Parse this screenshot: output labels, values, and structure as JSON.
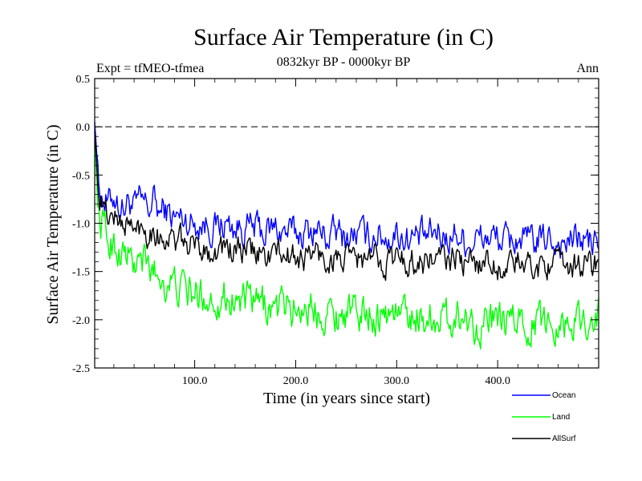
{
  "chart_data": {
    "type": "line",
    "title": "Surface Air Temperature (in C)",
    "subtitle": "0832kyr BP - 0000kyr BP",
    "expt_label": "Expt = tfMEO-tfmea",
    "period_label": "Ann",
    "xlabel": "Time (in years since start)",
    "ylabel": "Surface Air Temperature (in C)",
    "xlim": [
      1,
      500
    ],
    "ylim": [
      -2.5,
      0.5
    ],
    "x_ticks": [
      100,
      200,
      300,
      400
    ],
    "x_tick_labels": [
      "100.0",
      "200.0",
      "300.0",
      "400.0"
    ],
    "y_ticks": [
      0.5,
      0.0,
      -0.5,
      -1.0,
      -1.5,
      -2.0,
      -2.5
    ],
    "y_tick_labels": [
      "0.5",
      "0.0",
      "-0.5",
      "-1.0",
      "-1.5",
      "-2.0",
      "-2.5"
    ],
    "reference_line": 0.0,
    "series": [
      {
        "name": "Ocean",
        "color": "#0000ff",
        "x": [
          1,
          5,
          10,
          15,
          20,
          25,
          30,
          35,
          40,
          45,
          50,
          55,
          60,
          65,
          70,
          75,
          80,
          90,
          100,
          110,
          120,
          130,
          140,
          150,
          160,
          170,
          180,
          190,
          200,
          210,
          220,
          230,
          240,
          250,
          260,
          270,
          280,
          290,
          300,
          310,
          320,
          330,
          340,
          350,
          360,
          370,
          380,
          390,
          400,
          410,
          420,
          430,
          440,
          450,
          460,
          470,
          480,
          490,
          500
        ],
        "values": [
          0.05,
          -0.6,
          -0.75,
          -0.8,
          -0.7,
          -0.8,
          -0.85,
          -0.75,
          -0.85,
          -0.8,
          -0.8,
          -0.85,
          -0.75,
          -0.9,
          -0.85,
          -0.9,
          -0.95,
          -0.95,
          -1.0,
          -1.0,
          -1.05,
          -1.0,
          -1.05,
          -1.05,
          -1.05,
          -1.1,
          -1.05,
          -1.1,
          -1.1,
          -1.1,
          -1.05,
          -1.15,
          -1.1,
          -1.15,
          -1.1,
          -1.15,
          -1.1,
          -1.15,
          -1.1,
          -1.15,
          -1.15,
          -1.15,
          -1.1,
          -1.15,
          -1.1,
          -1.2,
          -1.15,
          -1.15,
          -1.15,
          -1.2,
          -1.15,
          -1.2,
          -1.2,
          -1.15,
          -1.2,
          -1.2,
          -1.15,
          -1.2,
          -1.2
        ]
      },
      {
        "name": "Land",
        "color": "#00ff00",
        "x": [
          1,
          5,
          10,
          15,
          20,
          25,
          30,
          35,
          40,
          45,
          50,
          55,
          60,
          65,
          70,
          75,
          80,
          90,
          100,
          110,
          120,
          130,
          140,
          150,
          160,
          170,
          180,
          190,
          200,
          210,
          220,
          230,
          240,
          250,
          260,
          270,
          280,
          290,
          300,
          310,
          320,
          330,
          340,
          350,
          360,
          370,
          380,
          390,
          400,
          410,
          420,
          430,
          440,
          450,
          460,
          470,
          480,
          490,
          500
        ],
        "values": [
          -0.2,
          -0.9,
          -1.05,
          -1.2,
          -1.2,
          -1.3,
          -1.3,
          -1.35,
          -1.45,
          -1.4,
          -1.4,
          -1.5,
          -1.5,
          -1.55,
          -1.6,
          -1.6,
          -1.65,
          -1.7,
          -1.75,
          -1.75,
          -1.8,
          -1.75,
          -1.8,
          -1.8,
          -1.85,
          -1.85,
          -1.9,
          -1.85,
          -1.9,
          -1.85,
          -1.9,
          -1.9,
          -1.95,
          -1.9,
          -1.95,
          -1.9,
          -1.95,
          -1.95,
          -1.9,
          -1.95,
          -1.95,
          -2.0,
          -1.95,
          -2.0,
          -1.95,
          -2.0,
          -2.05,
          -2.0,
          -2.05,
          -2.05,
          -2.0,
          -2.05,
          -2.0,
          -2.05,
          -2.0,
          -2.05,
          -2.0,
          -2.0,
          -1.95
        ]
      },
      {
        "name": "AllSurf",
        "color": "#000000",
        "x": [
          1,
          5,
          10,
          15,
          20,
          25,
          30,
          35,
          40,
          45,
          50,
          55,
          60,
          65,
          70,
          75,
          80,
          90,
          100,
          110,
          120,
          130,
          140,
          150,
          160,
          170,
          180,
          190,
          200,
          210,
          220,
          230,
          240,
          250,
          260,
          270,
          280,
          290,
          300,
          310,
          320,
          330,
          340,
          350,
          360,
          370,
          380,
          390,
          400,
          410,
          420,
          430,
          440,
          450,
          460,
          470,
          480,
          490,
          500
        ],
        "values": [
          -0.05,
          -0.7,
          -0.85,
          -0.95,
          -0.9,
          -1.0,
          -1.0,
          -1.0,
          -1.1,
          -1.05,
          -1.05,
          -1.1,
          -1.05,
          -1.15,
          -1.15,
          -1.15,
          -1.2,
          -1.2,
          -1.25,
          -1.25,
          -1.3,
          -1.25,
          -1.3,
          -1.3,
          -1.3,
          -1.35,
          -1.3,
          -1.35,
          -1.35,
          -1.35,
          -1.3,
          -1.4,
          -1.35,
          -1.4,
          -1.35,
          -1.4,
          -1.35,
          -1.4,
          -1.35,
          -1.4,
          -1.4,
          -1.4,
          -1.35,
          -1.4,
          -1.35,
          -1.45,
          -1.4,
          -1.4,
          -1.45,
          -1.45,
          -1.4,
          -1.45,
          -1.45,
          -1.4,
          -1.45,
          -1.45,
          -1.4,
          -1.45,
          -1.4
        ]
      }
    ],
    "legend_position": "bottom-right"
  }
}
